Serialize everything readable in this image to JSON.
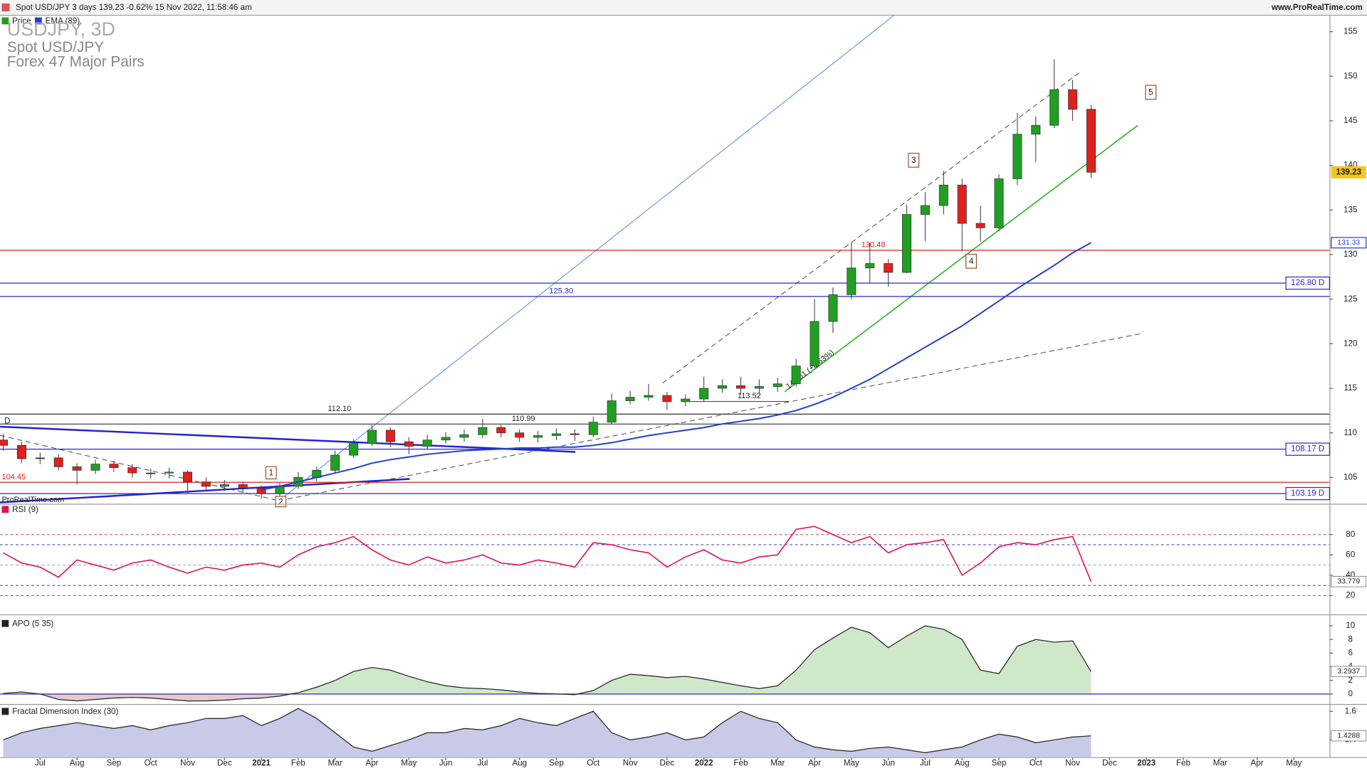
{
  "header": {
    "text": "Spot USD/JPY 3 days 139.23 -0.62% 15 Nov 2022, 11:58:46 am",
    "site": "www.ProRealTime.com",
    "watermark": "ProRealTime.com"
  },
  "chart_data": [
    {
      "type": "candlestick",
      "title": "USDJPY, 3D",
      "subtitle": "Spot USD/JPY",
      "subtitle2": "Forex 47 Major Pairs",
      "price_label": "Price",
      "up_color": "#20a020",
      "down_color": "#e0201a",
      "categories": [
        null,
        null,
        "Jul",
        null,
        "Aug",
        null,
        "Sep",
        null,
        "Oct",
        null,
        "Nov",
        null,
        "Dec",
        null,
        "2021",
        null,
        "Feb",
        null,
        "Mar",
        null,
        "Apr",
        null,
        "May",
        null,
        "Jun",
        null,
        "Jul",
        null,
        "Aug",
        null,
        "Sep",
        null,
        "Oct",
        null,
        "Nov",
        null,
        "Dec",
        null,
        "2022",
        null,
        "Feb",
        null,
        "Mar",
        null,
        "Apr",
        null,
        "May",
        null,
        "Jun",
        null,
        "Jul",
        null,
        "Aug",
        null,
        "Sep",
        null,
        "Oct",
        null,
        "Nov",
        null,
        "Dec",
        null,
        "2023",
        null,
        "Feb",
        null,
        "Mar",
        null,
        "Apr",
        null,
        "May"
      ],
      "open": [
        109.2,
        108.6,
        107.1,
        107.2,
        106.2,
        105.8,
        106.5,
        106.1,
        105.5,
        105.5,
        105.6,
        104.5,
        104.0,
        104.2,
        103.8,
        103.2,
        104.0,
        105.0,
        105.8,
        107.5,
        108.8,
        110.3,
        109.0,
        108.5,
        109.2,
        109.5,
        109.8,
        110.6,
        110.0,
        109.5,
        109.7,
        109.9,
        109.8,
        111.2,
        113.6,
        114.0,
        114.2,
        113.5,
        113.8,
        115.0,
        115.3,
        115.0,
        115.2,
        115.5,
        117.5,
        122.5,
        125.5,
        128.5,
        129.0,
        128.0,
        134.5,
        135.5,
        137.8,
        133.5,
        133.0,
        138.5,
        143.5,
        144.5,
        148.5,
        146.3,
        null,
        null,
        null,
        null,
        null,
        null,
        null,
        null,
        null,
        null,
        null
      ],
      "high": [
        109.9,
        109.0,
        107.8,
        107.6,
        106.6,
        107.0,
        106.9,
        106.5,
        106.0,
        106.1,
        105.8,
        105.0,
        104.7,
        104.5,
        104.1,
        104.4,
        105.6,
        106.2,
        108.0,
        109.3,
        110.9,
        110.6,
        109.5,
        109.8,
        110.1,
        110.4,
        111.6,
        110.9,
        110.4,
        110.2,
        110.5,
        110.4,
        111.8,
        114.4,
        114.7,
        115.5,
        114.6,
        114.3,
        116.3,
        116.0,
        116.3,
        116.0,
        116.2,
        118.3,
        125.0,
        126.3,
        131.3,
        131.3,
        129.5,
        135.6,
        137.0,
        139.4,
        138.5,
        135.5,
        139.0,
        145.9,
        145.5,
        151.9,
        149.6,
        146.8,
        null,
        null,
        null,
        null,
        null,
        null,
        null,
        null,
        null,
        null,
        null
      ],
      "low": [
        108.0,
        106.6,
        106.5,
        105.8,
        104.2,
        105.4,
        105.6,
        105.0,
        104.9,
        104.9,
        103.2,
        103.6,
        103.5,
        103.3,
        102.6,
        102.9,
        103.7,
        104.6,
        105.5,
        107.2,
        108.5,
        108.4,
        107.6,
        108.2,
        108.8,
        109.0,
        109.4,
        109.5,
        109.0,
        108.9,
        109.2,
        109.1,
        109.5,
        111.0,
        113.2,
        113.6,
        112.6,
        113.0,
        113.5,
        114.5,
        114.3,
        114.4,
        114.6,
        115.2,
        117.3,
        121.2,
        125.0,
        126.8,
        126.4,
        127.9,
        131.5,
        134.5,
        130.4,
        131.5,
        132.6,
        137.8,
        140.4,
        144.2,
        145.0,
        138.6,
        null,
        null,
        null,
        null,
        null,
        null,
        null,
        null,
        null,
        null,
        null
      ],
      "close": [
        108.6,
        107.1,
        107.2,
        106.2,
        105.8,
        106.5,
        106.1,
        105.5,
        105.5,
        105.6,
        104.5,
        104.0,
        104.2,
        103.8,
        103.2,
        104.0,
        105.0,
        105.8,
        107.5,
        108.8,
        110.3,
        109.0,
        108.5,
        109.2,
        109.5,
        109.8,
        110.6,
        110.0,
        109.5,
        109.7,
        109.9,
        109.8,
        111.2,
        113.6,
        114.0,
        114.2,
        113.5,
        113.8,
        115.0,
        115.3,
        115.0,
        115.2,
        115.5,
        117.5,
        122.5,
        125.5,
        128.5,
        129.0,
        128.0,
        134.5,
        135.5,
        137.8,
        133.5,
        133.0,
        138.5,
        143.5,
        144.5,
        148.5,
        146.3,
        139.23,
        null,
        null,
        null,
        null,
        null,
        null,
        null,
        null,
        null,
        null,
        null
      ],
      "series": [
        {
          "name": "EMA (89)",
          "color": "#1f3fd0",
          "values": [
            null,
            null,
            null,
            null,
            null,
            null,
            null,
            null,
            null,
            null,
            null,
            null,
            null,
            null,
            103.6,
            104.0,
            104.5,
            105.0,
            105.5,
            106.0,
            106.6,
            107.0,
            107.3,
            107.6,
            107.8,
            108.0,
            108.1,
            108.2,
            108.3,
            108.3,
            108.4,
            108.4,
            108.6,
            108.9,
            109.3,
            109.7,
            110.0,
            110.3,
            110.6,
            111.0,
            111.3,
            111.6,
            112.0,
            112.5,
            113.2,
            114.0,
            115.0,
            116.0,
            117.2,
            118.4,
            119.6,
            120.8,
            122.0,
            123.4,
            124.8,
            126.2,
            127.5,
            128.8,
            130.2,
            131.33,
            null,
            null,
            null,
            null,
            null,
            null,
            null,
            null,
            null,
            null,
            null
          ]
        }
      ],
      "ylim": [
        102.1,
        156.8
      ],
      "yticks": [
        105,
        110,
        115,
        120,
        125,
        130,
        135,
        140,
        145,
        150,
        155
      ],
      "levels": [
        {
          "value": 130.48,
          "label": "130.48",
          "color": "#e02020"
        },
        {
          "value": 126.8,
          "label": "126.80 D",
          "color": "#2a2ac8"
        },
        {
          "value": 125.3,
          "label": "125.30",
          "color": "#2a2ac8"
        },
        {
          "value": 112.1,
          "label": "112.10",
          "color": "#333333"
        },
        {
          "value": 110.99,
          "label": "110.99",
          "color": "#333333"
        },
        {
          "value": 108.17,
          "label": "108.17 D",
          "color": "#2a2ac8"
        },
        {
          "value": 104.45,
          "label": "104.45",
          "color": "#e02020"
        },
        {
          "value": 103.19,
          "label": "103.19 D",
          "color": "#2a2ac8"
        }
      ],
      "annotations": [
        "1",
        "2",
        "3",
        "4",
        "5",
        "141.51 (+1.63%)",
        "113.52",
        "D"
      ]
    },
    {
      "type": "line",
      "title": "RSI (9)",
      "color": "#e0105a",
      "values": [
        62,
        52,
        48,
        38,
        55,
        50,
        45,
        52,
        55,
        48,
        42,
        48,
        45,
        50,
        52,
        48,
        60,
        68,
        72,
        78,
        65,
        55,
        50,
        58,
        52,
        55,
        60,
        52,
        50,
        55,
        52,
        48,
        72,
        70,
        65,
        62,
        48,
        58,
        65,
        55,
        52,
        58,
        60,
        85,
        88,
        80,
        72,
        78,
        62,
        70,
        72,
        75,
        40,
        52,
        68,
        72,
        70,
        75,
        78,
        33.779,
        null,
        null,
        null,
        null,
        null,
        null,
        null,
        null,
        null,
        null,
        null
      ],
      "ylim": [
        2,
        109
      ],
      "yticks": [
        20,
        40,
        60,
        80
      ],
      "levels": [
        {
          "value": 80,
          "color": "#e02020"
        },
        {
          "value": 70,
          "color": "#3030c0"
        },
        {
          "value": 50,
          "color": "#999999"
        },
        {
          "value": 30,
          "color": "#3030c0"
        },
        {
          "value": 20,
          "color": "#20a020"
        }
      ]
    },
    {
      "type": "area",
      "title": "APO (5 35)",
      "color": "#222222",
      "fill_positive": "#cfe8c9",
      "fill_negative": "#e8c9c9",
      "values": [
        0.1,
        0.3,
        0.0,
        -0.8,
        -1.0,
        -0.8,
        -0.6,
        -0.5,
        -0.6,
        -0.8,
        -1.0,
        -1.0,
        -0.9,
        -0.7,
        -0.6,
        -0.3,
        0.2,
        1.0,
        2.0,
        3.3,
        3.9,
        3.5,
        2.6,
        1.8,
        1.2,
        0.9,
        0.8,
        0.6,
        0.3,
        0.1,
        0.0,
        -0.1,
        0.5,
        2.0,
        2.9,
        2.7,
        2.4,
        2.6,
        2.2,
        1.7,
        1.2,
        0.8,
        1.2,
        3.5,
        6.5,
        8.2,
        9.8,
        9.0,
        6.8,
        8.5,
        10.0,
        9.5,
        8.0,
        3.5,
        3.0,
        7.0,
        8.0,
        7.6,
        7.8,
        3.2937,
        null,
        null,
        null,
        null,
        null,
        null,
        null,
        null,
        null,
        null,
        null
      ],
      "ylim": [
        -1.4,
        11.5
      ],
      "yticks": [
        0,
        2,
        4,
        6,
        8,
        10
      ]
    },
    {
      "type": "area",
      "title": "Fractal Dimension Index (30)",
      "color": "#222222",
      "fill_positive": "#c9c9e8",
      "values": [
        1.4,
        1.45,
        1.48,
        1.5,
        1.52,
        1.5,
        1.48,
        1.5,
        1.47,
        1.5,
        1.52,
        1.55,
        1.55,
        1.57,
        1.5,
        1.55,
        1.62,
        1.55,
        1.45,
        1.35,
        1.32,
        1.36,
        1.4,
        1.45,
        1.45,
        1.48,
        1.47,
        1.5,
        1.55,
        1.52,
        1.5,
        1.55,
        1.6,
        1.45,
        1.4,
        1.42,
        1.45,
        1.4,
        1.42,
        1.52,
        1.6,
        1.55,
        1.52,
        1.4,
        1.35,
        1.33,
        1.32,
        1.34,
        1.35,
        1.33,
        1.31,
        1.33,
        1.35,
        1.4,
        1.44,
        1.42,
        1.38,
        1.4,
        1.42,
        1.4288,
        null,
        null,
        null,
        null,
        null,
        null,
        null,
        null,
        null,
        null,
        null
      ],
      "ylim": [
        1.276,
        1.642
      ],
      "yticks": [
        1.4,
        1.6
      ]
    }
  ]
}
